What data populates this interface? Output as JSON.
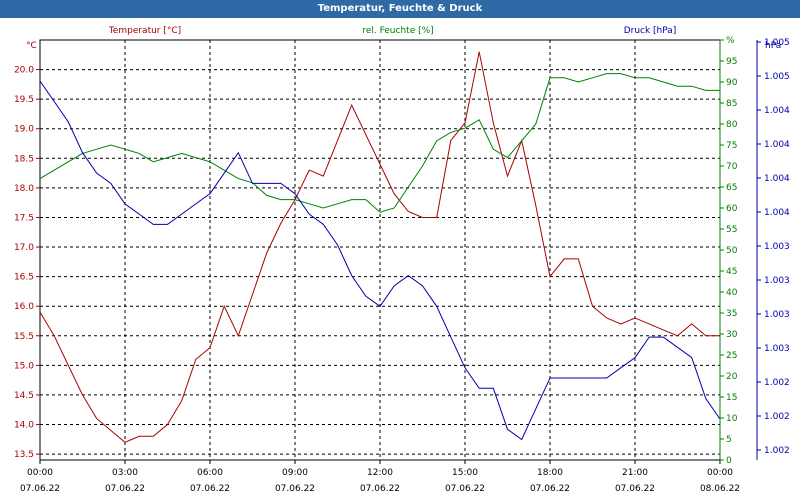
{
  "window": {
    "title": "Temperatur, Feuchte & Druck"
  },
  "chart_data": {
    "type": "line",
    "title": "Temperatur, Feuchte & Druck",
    "grid": true,
    "x": {
      "tick_times": [
        "00:00",
        "03:00",
        "06:00",
        "09:00",
        "12:00",
        "15:00",
        "18:00",
        "21:00",
        "00:00"
      ],
      "tick_dates": [
        "07.06.22",
        "07.06.22",
        "07.06.22",
        "07.06.22",
        "07.06.22",
        "07.06.22",
        "07.06.22",
        "07.06.22",
        "08.06.22"
      ],
      "range_hours": [
        0,
        24
      ]
    },
    "axes": {
      "temperature": {
        "label": "Temperatur [°C]",
        "unit": "°C",
        "color": "#aa0000",
        "range": [
          13.4,
          20.5
        ],
        "ticks": [
          "13.5",
          "14.0",
          "14.5",
          "15.0",
          "15.5",
          "16.0",
          "16.5",
          "17.0",
          "17.5",
          "18.0",
          "18.5",
          "19.0",
          "19.5",
          "20.0"
        ]
      },
      "humidity": {
        "label": "rel. Feuchte [%]",
        "unit": "%",
        "color": "#008000",
        "range": [
          0,
          100
        ],
        "ticks": [
          "0",
          "5",
          "10",
          "15",
          "20",
          "25",
          "30",
          "35",
          "40",
          "45",
          "50",
          "55",
          "60",
          "65",
          "70",
          "75",
          "80",
          "85",
          "90",
          "95",
          "%"
        ]
      },
      "pressure": {
        "label": "Druck [hPa]",
        "unit": "hPa",
        "color": "#0000aa",
        "range": [
          1001.5,
          1005.6
        ],
        "ticks": [
          "1.002",
          "1.002",
          "1.002",
          "1.003",
          "1.003",
          "1.003",
          "1.003",
          "1.004",
          "1.004",
          "1.004",
          "1.004",
          "1.005",
          "1.005"
        ]
      }
    },
    "series": [
      {
        "name": "Temperatur [°C]",
        "axis": "temperature",
        "color": "#aa0000",
        "x": [
          0,
          0.5,
          1,
          1.5,
          2,
          2.5,
          3,
          3.5,
          4,
          4.5,
          5,
          5.5,
          6,
          6.5,
          7,
          7.5,
          8,
          8.5,
          9,
          9.5,
          10,
          10.5,
          11,
          11.5,
          12,
          12.5,
          13,
          13.5,
          14,
          14.5,
          15,
          15.5,
          16,
          16.5,
          17,
          17.5,
          18,
          18.5,
          19,
          19.5,
          20,
          20.5,
          21,
          21.5,
          22,
          22.5,
          23,
          23.5,
          24
        ],
        "y": [
          15.9,
          15.5,
          15.0,
          14.5,
          14.1,
          13.9,
          13.7,
          13.8,
          13.8,
          14.0,
          14.4,
          15.1,
          15.3,
          16.0,
          15.5,
          16.2,
          16.9,
          17.4,
          17.8,
          18.3,
          18.2,
          18.8,
          19.4,
          18.9,
          18.4,
          17.9,
          17.6,
          17.5,
          17.5,
          18.8,
          19.1,
          20.3,
          19.1,
          18.2,
          18.8,
          17.7,
          16.5,
          16.8,
          16.8,
          16.0,
          15.8,
          15.7,
          15.8,
          15.7,
          15.6,
          15.5,
          15.7,
          15.5,
          15.5
        ]
      },
      {
        "name": "rel. Feuchte [%]",
        "axis": "humidity",
        "color": "#008000",
        "x": [
          0,
          0.5,
          1,
          1.5,
          2,
          2.5,
          3,
          3.5,
          4,
          4.5,
          5,
          5.5,
          6,
          6.5,
          7,
          7.5,
          8,
          8.5,
          9,
          9.5,
          10,
          10.5,
          11,
          11.5,
          12,
          12.5,
          13,
          13.5,
          14,
          14.5,
          15,
          15.5,
          16,
          16.5,
          17,
          17.5,
          18,
          18.5,
          19,
          19.5,
          20,
          20.5,
          21,
          21.5,
          22,
          22.5,
          23,
          23.5,
          24
        ],
        "y": [
          67,
          69,
          71,
          73,
          74,
          75,
          74,
          73,
          71,
          72,
          73,
          72,
          71,
          69,
          67,
          66,
          63,
          62,
          62,
          61,
          60,
          61,
          62,
          62,
          59,
          60,
          65,
          70,
          76,
          78,
          79,
          81,
          74,
          72,
          76,
          80,
          91,
          91,
          90,
          91,
          92,
          92,
          91,
          91,
          90,
          89,
          89,
          88,
          88
        ]
      },
      {
        "name": "Druck [hPa]",
        "axis": "pressure",
        "color": "#0000aa",
        "x": [
          0,
          0.5,
          1,
          1.5,
          2,
          2.5,
          3,
          3.5,
          4,
          4.5,
          5,
          5.5,
          6,
          6.5,
          7,
          7.5,
          8,
          8.5,
          9,
          9.5,
          10,
          10.5,
          11,
          11.5,
          12,
          12.5,
          13,
          13.5,
          14,
          14.5,
          15,
          15.5,
          16,
          16.5,
          17,
          17.5,
          18,
          18.5,
          19,
          19.5,
          20,
          20.5,
          21,
          21.5,
          22,
          22.5,
          23,
          23.5,
          24
        ],
        "y": [
          1005.2,
          1005.0,
          1004.8,
          1004.5,
          1004.3,
          1004.2,
          1004.0,
          1003.9,
          1003.8,
          1003.8,
          1003.9,
          1004.0,
          1004.1,
          1004.3,
          1004.5,
          1004.2,
          1004.2,
          1004.2,
          1004.1,
          1003.9,
          1003.8,
          1003.6,
          1003.3,
          1003.1,
          1003.0,
          1003.2,
          1003.3,
          1003.2,
          1003.0,
          1002.7,
          1002.4,
          1002.2,
          1002.2,
          1001.8,
          1001.7,
          1002.0,
          1002.3,
          1002.3,
          1002.3,
          1002.3,
          1002.3,
          1002.4,
          1002.5,
          1002.7,
          1002.7,
          1002.6,
          1002.5,
          1002.1,
          1001.9
        ]
      }
    ]
  }
}
